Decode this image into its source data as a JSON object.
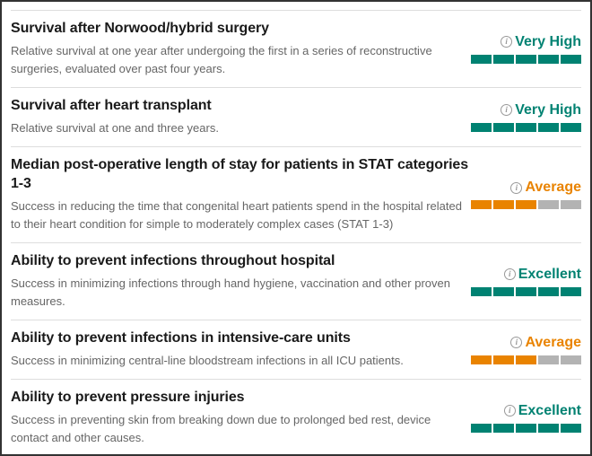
{
  "colors": {
    "rating_positive": "#008272",
    "rating_average": "#E98300",
    "segment_empty": "#B3B3B3"
  },
  "report": {
    "info_glyph": "i",
    "rows": [
      {
        "title": "Survival after Norwood/hybrid surgery",
        "description": "Relative survival at one year after undergoing the first in a series of reconstructive surgeries, evaluated over past four years.",
        "rating_label": "Very High",
        "rating_color": "rating_positive",
        "filled_segments": 5,
        "total_segments": 5
      },
      {
        "title": "Survival after heart transplant",
        "description": "Relative survival at one and three years.",
        "rating_label": "Very High",
        "rating_color": "rating_positive",
        "filled_segments": 5,
        "total_segments": 5
      },
      {
        "title": "Median post-operative length of stay for patients in STAT categories 1-3",
        "description": "Success in reducing the time that congenital heart patients spend in the hospital related to their heart condition for simple to moderately complex cases (STAT 1-3)",
        "rating_label": "Average",
        "rating_color": "rating_average",
        "filled_segments": 3,
        "total_segments": 5
      },
      {
        "title": "Ability to prevent infections throughout hospital",
        "description": "Success in minimizing infections through hand hygiene, vaccination and other proven measures.",
        "rating_label": "Excellent",
        "rating_color": "rating_positive",
        "filled_segments": 5,
        "total_segments": 5
      },
      {
        "title": "Ability to prevent infections in intensive-care units",
        "description": "Success in minimizing central-line bloodstream infections in all ICU patients.",
        "rating_label": "Average",
        "rating_color": "rating_average",
        "filled_segments": 3,
        "total_segments": 5
      },
      {
        "title": "Ability to prevent pressure injuries",
        "description": "Success in preventing skin from breaking down due to prolonged bed rest, device contact and other causes.",
        "rating_label": "Excellent",
        "rating_color": "rating_positive",
        "filled_segments": 5,
        "total_segments": 5
      }
    ]
  }
}
